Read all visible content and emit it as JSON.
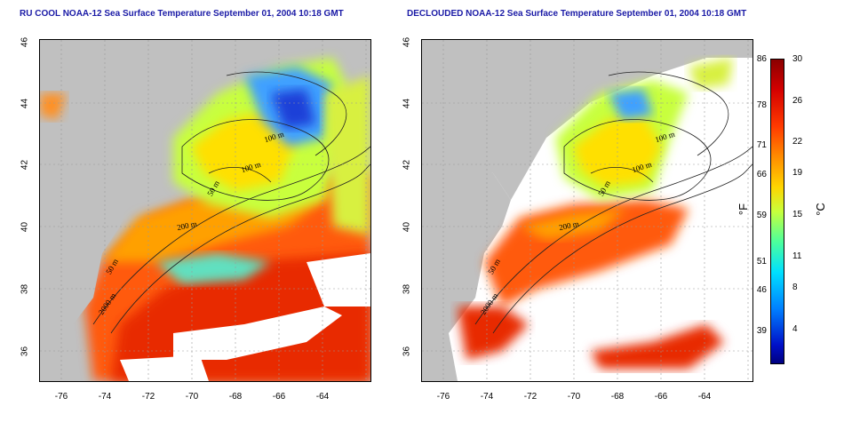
{
  "left_panel": {
    "title": "RU COOL NOAA-12 Sea Surface Temperature September 01, 2004 10:18 GMT",
    "contour_labels": [
      "100 m",
      "100 m",
      "50 m",
      "200 m",
      "50 m",
      "2000 m"
    ]
  },
  "right_panel": {
    "title": "DECLOUDED NOAA-12 Sea Surface Temperature September 01, 2004 10:18 GMT",
    "contour_labels": [
      "100 m",
      "100 m",
      "50 m",
      "200 m",
      "50 m",
      "2000 m"
    ]
  },
  "axes": {
    "y_ticks": [
      "46",
      "44",
      "42",
      "40",
      "38",
      "36"
    ],
    "x_ticks": [
      "-76",
      "-74",
      "-72",
      "-70",
      "-68",
      "-66",
      "-64"
    ]
  },
  "colorbar": {
    "fahrenheit_unit": "°F",
    "celsius_unit": "°C",
    "fahrenheit_ticks": [
      "86",
      "78",
      "71",
      "66",
      "59",
      "51",
      "46",
      "39"
    ],
    "celsius_ticks": [
      "30",
      "26",
      "22",
      "19",
      "15",
      "11",
      "8",
      "4"
    ],
    "colors": {
      "hot": "#8a0000",
      "warm": "#ff3a00",
      "mild": "#ffd500",
      "cool": "#4cff9c",
      "cold": "#0010c8",
      "land": "#c0c0c0",
      "cloud": "#ffffff"
    }
  }
}
